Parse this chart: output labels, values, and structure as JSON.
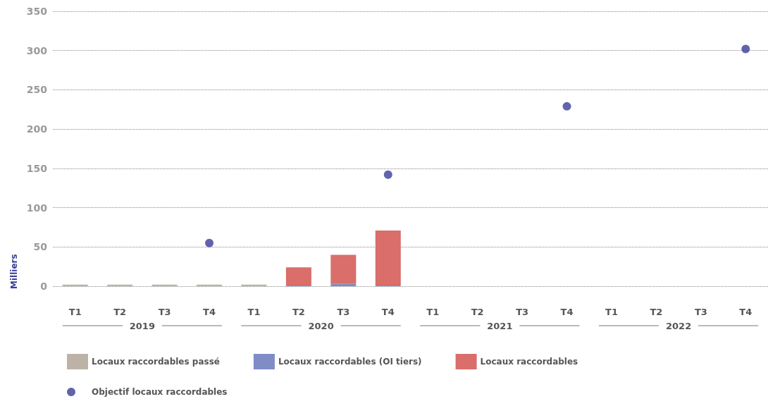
{
  "chart_data": {
    "type": "bar",
    "stacked": true,
    "ylabel": "Milliers",
    "categories": [
      "T1",
      "T2",
      "T3",
      "T4",
      "T1",
      "T2",
      "T3",
      "T4",
      "T1",
      "T2",
      "T3",
      "T4",
      "T1",
      "T2",
      "T3",
      "T4"
    ],
    "annotations": [
      "2019",
      "2020",
      "2021",
      "2022"
    ],
    "series": [
      {
        "name": "Locaux raccordables passé",
        "color": "#bcb3a6",
        "values": [
          2,
          2,
          2,
          2,
          2,
          null,
          null,
          null,
          null,
          null,
          null,
          null,
          null,
          null,
          null,
          null
        ]
      },
      {
        "name": "Locaux raccordables (OI tiers)",
        "color": "#7f8cc6",
        "values": [
          null,
          null,
          null,
          null,
          null,
          1,
          3,
          1,
          null,
          null,
          null,
          null,
          null,
          null,
          null,
          null
        ]
      },
      {
        "name": "Locaux raccordables",
        "color": "#d96e6a",
        "values": [
          null,
          null,
          null,
          null,
          null,
          23,
          37,
          70,
          null,
          null,
          null,
          null,
          null,
          null,
          null,
          null
        ]
      },
      {
        "name": "Objectif locaux raccordables",
        "type": "scatter",
        "color": "#3a3d96",
        "values": [
          null,
          null,
          null,
          55,
          null,
          null,
          null,
          142,
          null,
          null,
          null,
          229,
          null,
          null,
          null,
          302
        ]
      }
    ],
    "ylim": [
      0,
      350
    ],
    "yticks": [
      0,
      50,
      100,
      150,
      200,
      250,
      300,
      350
    ],
    "grid": "y",
    "legend": "bottom",
    "marker": "circle"
  }
}
